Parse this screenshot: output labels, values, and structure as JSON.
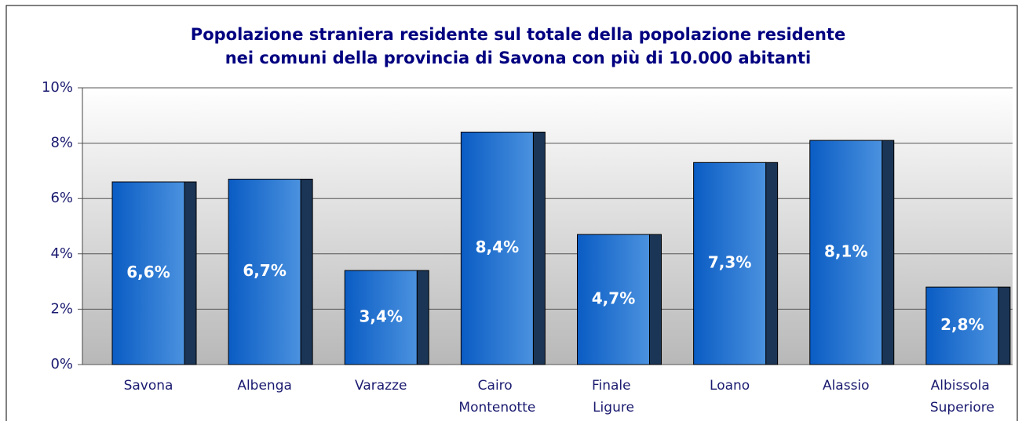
{
  "chart_data": {
    "type": "bar",
    "title": [
      "Popolazione straniera residente sul totale della popolazione residente",
      "nei comuni della provincia di Savona con più di 10.000 abitanti"
    ],
    "categories": [
      "Savona",
      "Albenga",
      "Varazze",
      "Cairo Montenotte",
      "Finale Ligure",
      "Loano",
      "Alassio",
      "Albissola Superiore"
    ],
    "values": [
      6.6,
      6.7,
      3.4,
      8.4,
      4.7,
      7.3,
      8.1,
      2.8
    ],
    "value_labels": [
      "6,6%",
      "6,7%",
      "3,4%",
      "8,4%",
      "4,7%",
      "7,3%",
      "8,1%",
      "2,8%"
    ],
    "color": "#1565c8",
    "ylim": [
      0,
      10
    ],
    "yticks": [
      {
        "value": 0,
        "label": "0%"
      },
      {
        "value": 2,
        "label": "2%"
      },
      {
        "value": 4,
        "label": "4%"
      },
      {
        "value": 6,
        "label": "6%"
      },
      {
        "value": 8,
        "label": "8%"
      },
      {
        "value": 10,
        "label": "10%"
      }
    ],
    "grid": true
  }
}
